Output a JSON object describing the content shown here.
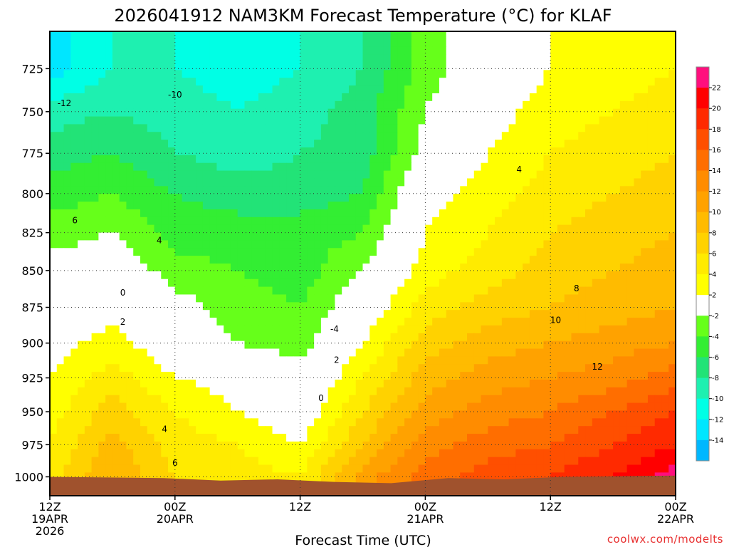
{
  "chart_data": {
    "type": "heatmap",
    "title": "2026041912 NAM3KM Forecast Temperature (°C) for KLAF",
    "xlabel": "Forecast Time (UTC)",
    "ylabel": "",
    "credit": "coolwx.com/modelts",
    "x_ticks": [
      {
        "hour": 0,
        "lines": [
          "12Z",
          "19APR",
          "2026"
        ]
      },
      {
        "hour": 12,
        "lines": [
          "00Z",
          "20APR"
        ]
      },
      {
        "hour": 24,
        "lines": [
          "12Z"
        ]
      },
      {
        "hour": 36,
        "lines": [
          "00Z",
          "21APR"
        ]
      },
      {
        "hour": 48,
        "lines": [
          "12Z"
        ]
      },
      {
        "hour": 60,
        "lines": [
          "00Z",
          "22APR"
        ]
      }
    ],
    "xlim": [
      0,
      60
    ],
    "y_ticks": [
      "725",
      "750",
      "775",
      "800",
      "825",
      "850",
      "875",
      "900",
      "925",
      "950",
      "975",
      "1000"
    ],
    "ylim": [
      1015,
      704
    ],
    "y_scale": "log-pressure (hPa)",
    "grid": true,
    "colorbar": {
      "labels": [
        "22",
        "20",
        "18",
        "16",
        "14",
        "12",
        "10",
        "8",
        "6",
        "4",
        "2",
        "-2",
        "-4",
        "-6",
        "-8",
        "-10",
        "-12",
        "-14"
      ],
      "colors": [
        "#ff0f7d",
        "#ff0000",
        "#ff2a00",
        "#ff4f00",
        "#ff6e00",
        "#ff8c00",
        "#ffa200",
        "#ffbb00",
        "#ffd200",
        "#ffeb00",
        "#ffff00",
        "#ffffff",
        "#66ff1a",
        "#33ee33",
        "#22e377",
        "#1ef0b0",
        "#00ffe5",
        "#00e6ff",
        "#00b7ff"
      ]
    },
    "pressure_levels": [
      1000,
      975,
      950,
      925,
      900,
      875,
      850,
      825,
      800,
      775,
      750,
      725
    ],
    "forecast_hours": [
      0,
      6,
      12,
      18,
      24,
      30,
      36,
      42,
      48,
      54,
      60
    ],
    "values": [
      [
        5,
        10,
        6,
        5,
        4,
        11,
        15,
        17,
        18,
        20,
        23
      ],
      [
        4,
        9,
        5,
        4,
        2,
        8,
        13,
        15,
        16,
        18,
        20
      ],
      [
        3,
        7,
        4,
        2,
        0,
        6,
        11,
        13,
        14,
        16,
        18
      ],
      [
        2,
        5,
        2,
        1,
        -1,
        4,
        9,
        11,
        12,
        13,
        15
      ],
      [
        1,
        3,
        0,
        -2,
        -3,
        2,
        7,
        9,
        10,
        11,
        12
      ],
      [
        0,
        1,
        -1,
        -3,
        -4,
        0,
        5,
        7,
        8,
        9,
        10
      ],
      [
        -1,
        0,
        -3,
        -4,
        -5,
        -2,
        3,
        5,
        7,
        8,
        9
      ],
      [
        -3,
        -2,
        -5,
        -5,
        -5,
        -4,
        2,
        4,
        6,
        7,
        8
      ],
      [
        -5,
        -4,
        -6,
        -7,
        -7,
        -6,
        1,
        3,
        5,
        6,
        7
      ],
      [
        -7,
        -6,
        -8,
        -9,
        -8,
        -7,
        -1,
        2,
        4,
        5,
        6
      ],
      [
        -9,
        -8,
        -9,
        -10,
        -9,
        -7,
        -2,
        1,
        3,
        4,
        5
      ],
      [
        -13,
        -10,
        -10,
        -11,
        -10,
        -8,
        -3,
        0,
        2,
        3,
        4
      ]
    ],
    "contour_labels": [
      {
        "text": "-12",
        "hour": 1.4,
        "p": 745
      },
      {
        "text": "-10",
        "hour": 12,
        "p": 740
      },
      {
        "text": "6",
        "hour": 2.4,
        "p": 817
      },
      {
        "text": "4",
        "hour": 10.5,
        "p": 830
      },
      {
        "text": "0",
        "hour": 7,
        "p": 865
      },
      {
        "text": "2",
        "hour": 7,
        "p": 885
      },
      {
        "text": "-4",
        "hour": 27.3,
        "p": 890
      },
      {
        "text": "2",
        "hour": 27.5,
        "p": 912
      },
      {
        "text": "0",
        "hour": 26,
        "p": 940
      },
      {
        "text": "4",
        "hour": 11,
        "p": 963
      },
      {
        "text": "6",
        "hour": 12,
        "p": 989
      },
      {
        "text": "4",
        "hour": 45,
        "p": 785
      },
      {
        "text": "8",
        "hour": 50.5,
        "p": 862
      },
      {
        "text": "10",
        "hour": 48.5,
        "p": 884
      },
      {
        "text": "12",
        "hour": 52.5,
        "p": 917
      }
    ]
  }
}
